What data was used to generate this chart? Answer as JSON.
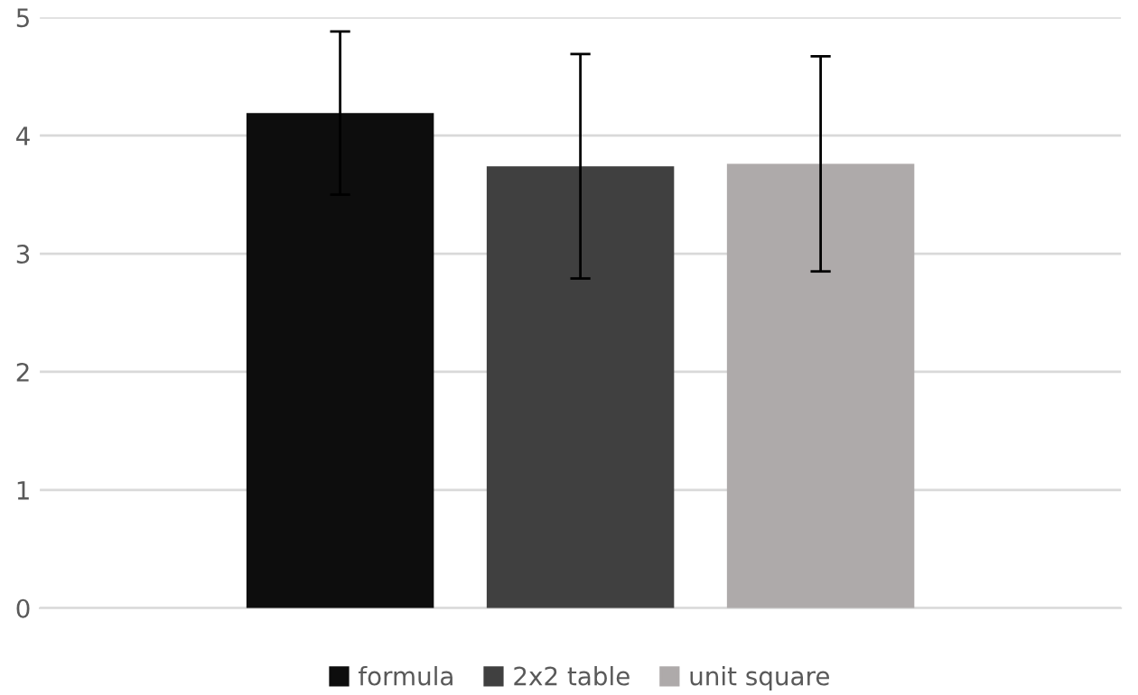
{
  "chart_data": {
    "type": "bar",
    "categories": [
      null
    ],
    "series": [
      {
        "name": "formula",
        "color": "#0d0d0d",
        "values": [
          4.19
        ],
        "errors": [
          0.69
        ]
      },
      {
        "name": "2x2 table",
        "color": "#404040",
        "values": [
          3.74
        ],
        "errors": [
          0.95
        ]
      },
      {
        "name": "unit square",
        "color": "#aeaaaa",
        "values": [
          3.76
        ],
        "errors": [
          0.91
        ]
      }
    ],
    "ylim": [
      0,
      5
    ],
    "yticks": [
      0,
      1,
      2,
      3,
      4,
      5
    ],
    "grid": "y",
    "legend": "bottom"
  }
}
